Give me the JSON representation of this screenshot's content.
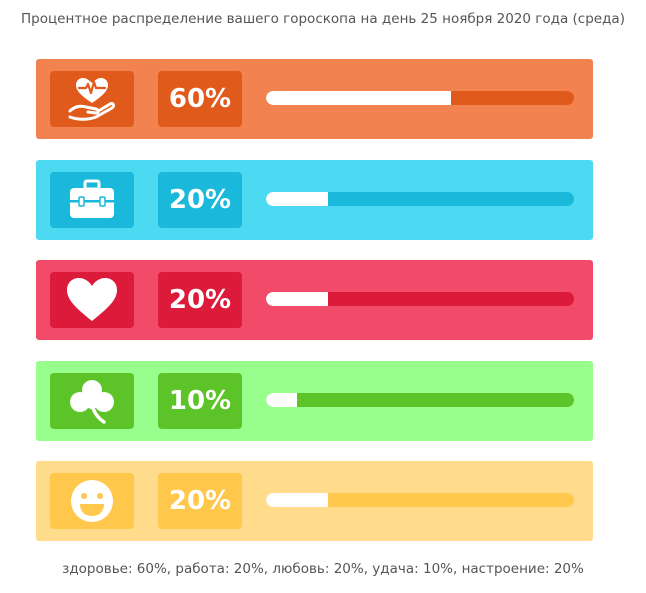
{
  "title": "Процентное распределение вашего гороскопа на день 25 ноября 2020 года (среда)",
  "footer": "здоровье: 60%, работа: 20%, любовь: 20%, удача: 10%, настроение: 20%",
  "chart_data": {
    "type": "bar",
    "categories": [
      "здоровье",
      "работа",
      "любовь",
      "удача",
      "настроение"
    ],
    "values": [
      60,
      20,
      20,
      10,
      20
    ],
    "labels": [
      "60%",
      "20%",
      "20%",
      "10%",
      "20%"
    ],
    "ylim": [
      0,
      100
    ]
  },
  "rows": [
    {
      "icon": "health-icon",
      "label": "60%",
      "value": 60,
      "bg": "#F28350",
      "box": "#E05A1C",
      "track": "#E05A1C"
    },
    {
      "icon": "briefcase-icon",
      "label": "20%",
      "value": 20,
      "bg": "#4CD9F2",
      "box": "#1AB9DC",
      "track": "#1AB9DC"
    },
    {
      "icon": "heart-icon",
      "label": "20%",
      "value": 20,
      "bg": "#F24B6A",
      "box": "#DC1A3A",
      "track": "#DC1A3A"
    },
    {
      "icon": "clover-icon",
      "label": "10%",
      "value": 10,
      "bg": "#99FF8C",
      "box": "#5CC428",
      "track": "#5CC428"
    },
    {
      "icon": "smiley-icon",
      "label": "20%",
      "value": 20,
      "bg": "#FFDC8C",
      "box": "#FFC84C",
      "track": "#FFC84C"
    }
  ]
}
